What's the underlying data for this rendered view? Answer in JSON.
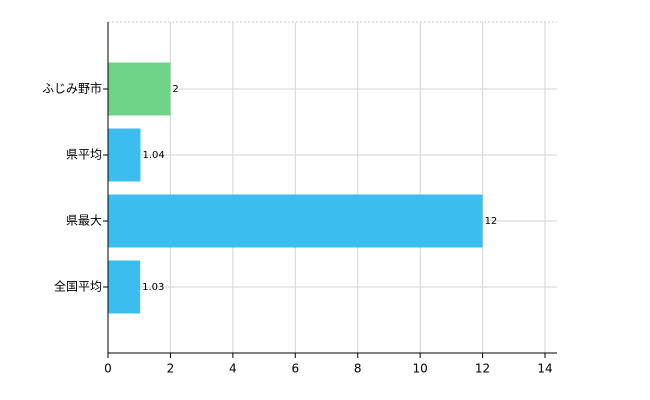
{
  "chart_data": {
    "type": "hbar",
    "categories": [
      "ふじみ野市",
      "県平均",
      "県最大",
      "全国平均"
    ],
    "values": [
      2,
      1.04,
      12,
      1.03
    ],
    "colors": [
      "#6fd488",
      "#3cbdf0",
      "#3cbdf0",
      "#3cbdf0"
    ],
    "xlim": [
      0,
      14
    ],
    "xticks": [
      0,
      2,
      4,
      6,
      8,
      10,
      12,
      14
    ],
    "grid": true
  }
}
